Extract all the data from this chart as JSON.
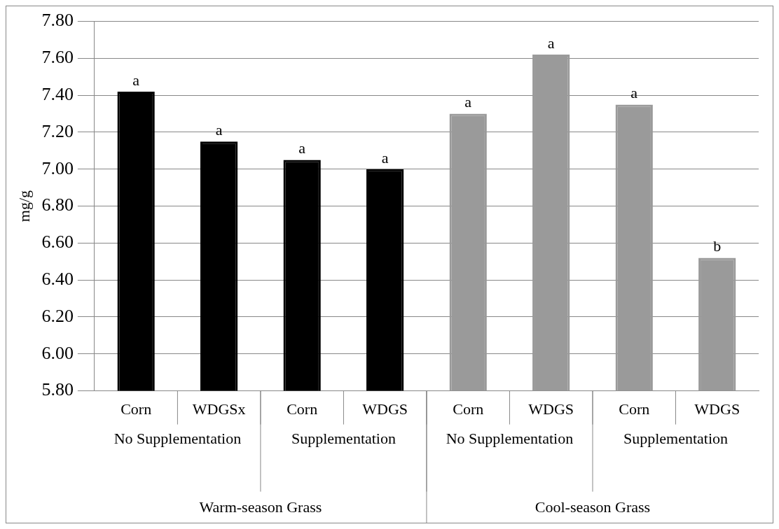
{
  "chart_data": {
    "type": "bar",
    "ylabel": "mg/g",
    "categories": [
      "Corn",
      "WDGSx",
      "Corn",
      "WDGS",
      "Corn",
      "WDGS",
      "Corn",
      "WDGS"
    ],
    "values": [
      7.42,
      7.15,
      7.05,
      7.0,
      7.3,
      7.62,
      7.35,
      6.52
    ],
    "colors": [
      "#000000",
      "#000000",
      "#000000",
      "#000000",
      "#9a9a9a",
      "#9a9a9a",
      "#9a9a9a",
      "#9a9a9a"
    ],
    "value_labels": [
      "a",
      "a",
      "a",
      "a",
      "a",
      "a",
      "a",
      "b"
    ],
    "annotations": [
      "No Supplementation",
      "Supplementation",
      "No Supplementation",
      "Supplementation",
      "Warm-season Grass",
      "Cool-season Grass"
    ],
    "ylim": [
      5.8,
      7.8
    ],
    "yticks": [
      {
        "value": 5.8,
        "label": "5.80"
      },
      {
        "value": 6.0,
        "label": "6.00"
      },
      {
        "value": 6.2,
        "label": "6.20"
      },
      {
        "value": 6.4,
        "label": "6.40"
      },
      {
        "value": 6.6,
        "label": "6.60"
      },
      {
        "value": 6.8,
        "label": "6.80"
      },
      {
        "value": 7.0,
        "label": "7.00"
      },
      {
        "value": 7.2,
        "label": "7.20"
      },
      {
        "value": 7.4,
        "label": "7.40"
      },
      {
        "value": 7.6,
        "label": "7.60"
      },
      {
        "value": 7.8,
        "label": "7.80"
      }
    ],
    "grid": "y",
    "legend": false
  }
}
